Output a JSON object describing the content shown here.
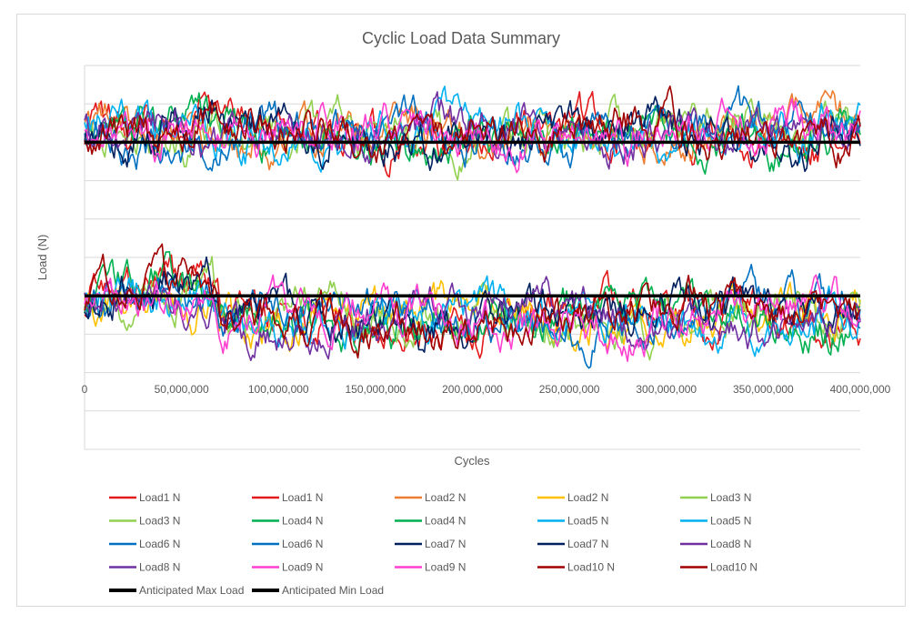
{
  "chart_data": {
    "type": "line",
    "title": "Cyclic Load Data Summary",
    "xlabel": "Cycles",
    "ylabel": "Load (N)",
    "xlim": [
      0,
      400000000
    ],
    "x_ticks": [
      0,
      50000000,
      100000000,
      150000000,
      200000000,
      250000000,
      300000000,
      350000000,
      400000000
    ],
    "x_tick_labels": [
      "0",
      "50,000,000",
      "100,000,000",
      "150,000,000",
      "200,000,000",
      "250,000,000",
      "300,000,000",
      "350,000,000",
      "400,000,000"
    ],
    "ylim": [
      0,
      10
    ],
    "y_gridlines": [
      0,
      1,
      2,
      3,
      4,
      5,
      6,
      7,
      8,
      9,
      10
    ],
    "y_tick_labels_visible": false,
    "grid": "horizontal",
    "legend_position": "bottom",
    "series": [
      {
        "name": "Load1   N",
        "color": "#e31a1c",
        "band": "upper",
        "seed": 11
      },
      {
        "name": "Load1   N",
        "color": "#e31a1c",
        "band": "lower",
        "seed": 12
      },
      {
        "name": "Load2   N",
        "color": "#ed7d31",
        "band": "upper",
        "seed": 21
      },
      {
        "name": "Load2   N",
        "color": "#ffc000",
        "band": "lower",
        "seed": 22
      },
      {
        "name": "Load3   N",
        "color": "#92d050",
        "band": "upper",
        "seed": 31
      },
      {
        "name": "Load3   N",
        "color": "#92d050",
        "band": "lower",
        "seed": 32
      },
      {
        "name": "Load4   N",
        "color": "#00b050",
        "band": "upper",
        "seed": 41
      },
      {
        "name": "Load4   N",
        "color": "#00b050",
        "band": "lower",
        "seed": 42
      },
      {
        "name": "Load5   N",
        "color": "#00b0f0",
        "band": "upper",
        "seed": 51
      },
      {
        "name": "Load5   N",
        "color": "#00b0f0",
        "band": "lower",
        "seed": 52
      },
      {
        "name": "Load6   N",
        "color": "#0070c0",
        "band": "upper",
        "seed": 61
      },
      {
        "name": "Load6   N",
        "color": "#0070c0",
        "band": "lower",
        "seed": 62
      },
      {
        "name": "Load7   N",
        "color": "#002060",
        "band": "upper",
        "seed": 71
      },
      {
        "name": "Load7   N",
        "color": "#002060",
        "band": "lower",
        "seed": 72
      },
      {
        "name": "Load8   N",
        "color": "#7030a0",
        "band": "upper",
        "seed": 81
      },
      {
        "name": "Load8   N",
        "color": "#7030a0",
        "band": "lower",
        "seed": 82
      },
      {
        "name": "Load9   N",
        "color": "#ff3fd0",
        "band": "upper",
        "seed": 91
      },
      {
        "name": "Load9   N",
        "color": "#ff3fd0",
        "band": "lower",
        "seed": 92
      },
      {
        "name": "Load10  N",
        "color": "#a00000",
        "band": "upper",
        "seed": 101
      },
      {
        "name": "Load10  N",
        "color": "#a00000",
        "band": "lower",
        "seed": 102
      }
    ],
    "reference_lines": [
      {
        "name": "Anticipated Max Load",
        "color": "#000000",
        "y": 8.0
      },
      {
        "name": "Anticipated Min Load",
        "color": "#000000",
        "y": 4.0
      }
    ]
  }
}
